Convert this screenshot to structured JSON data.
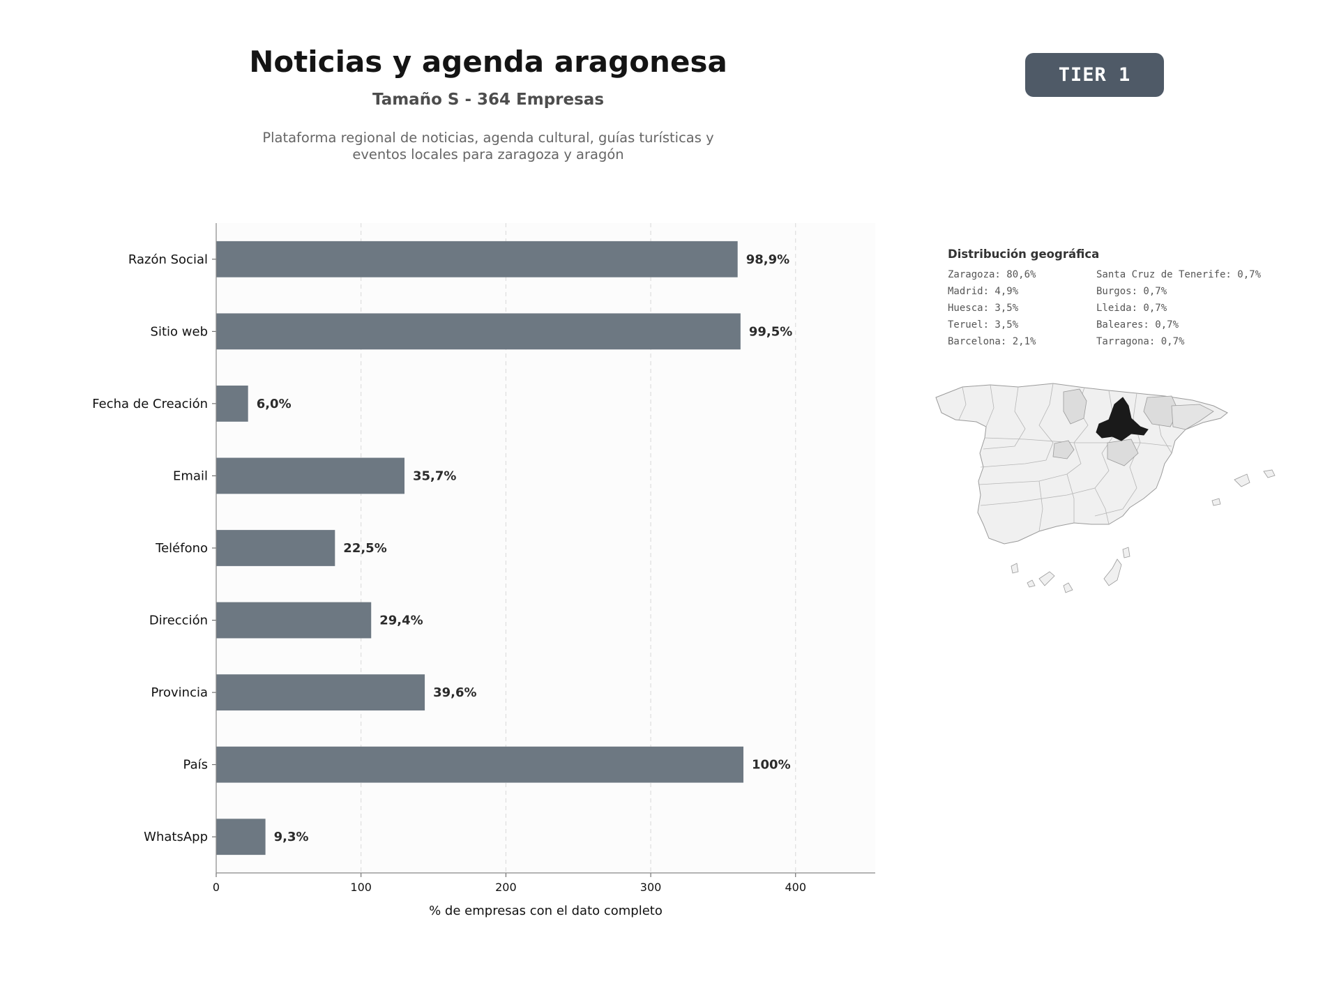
{
  "header": {
    "title": "Noticias y agenda aragonesa",
    "subtitle": "Tamaño S - 364 Empresas",
    "description": "Plataforma regional de noticias, agenda cultural, guías turísticas y eventos locales para zaragoza y aragón"
  },
  "badge": {
    "label": "TIER 1",
    "color": "#4f5a67"
  },
  "chart_data": {
    "type": "bar",
    "orientation": "horizontal",
    "categories": [
      "Razón Social",
      "Sitio web",
      "Fecha de Creación",
      "Email",
      "Teléfono",
      "Dirección",
      "Provincia",
      "País",
      "WhatsApp"
    ],
    "values": [
      360,
      362,
      22,
      130,
      82,
      107,
      144,
      364,
      34
    ],
    "data_labels": [
      "98,9%",
      "99,5%",
      "6,0%",
      "35,7%",
      "22,5%",
      "29,4%",
      "39,6%",
      "100%",
      "9,3%"
    ],
    "xlabel": "% de empresas con el dato completo",
    "ylabel": "",
    "xlim": [
      0,
      455
    ],
    "xticks": [
      0,
      100,
      200,
      300,
      400
    ],
    "grid": "vertical dashed",
    "bar_color": "#6d7882"
  },
  "geo": {
    "title": "Distribución geográfica",
    "items": [
      "Zaragoza: 80,6%",
      "Santa Cruz de Tenerife: 0,7%",
      "Madrid: 4,9%",
      "Burgos: 0,7%",
      "Huesca: 3,5%",
      "Lleida: 0,7%",
      "Teruel: 3,5%",
      "Baleares: 0,7%",
      "Barcelona: 2,1%",
      "Tarragona: 0,7%"
    ],
    "map_colors": {
      "highlight": "#1a1a1a",
      "secondary": "#dcdcdc",
      "base": "#f0f0f0",
      "border": "#9a9a9a"
    }
  }
}
